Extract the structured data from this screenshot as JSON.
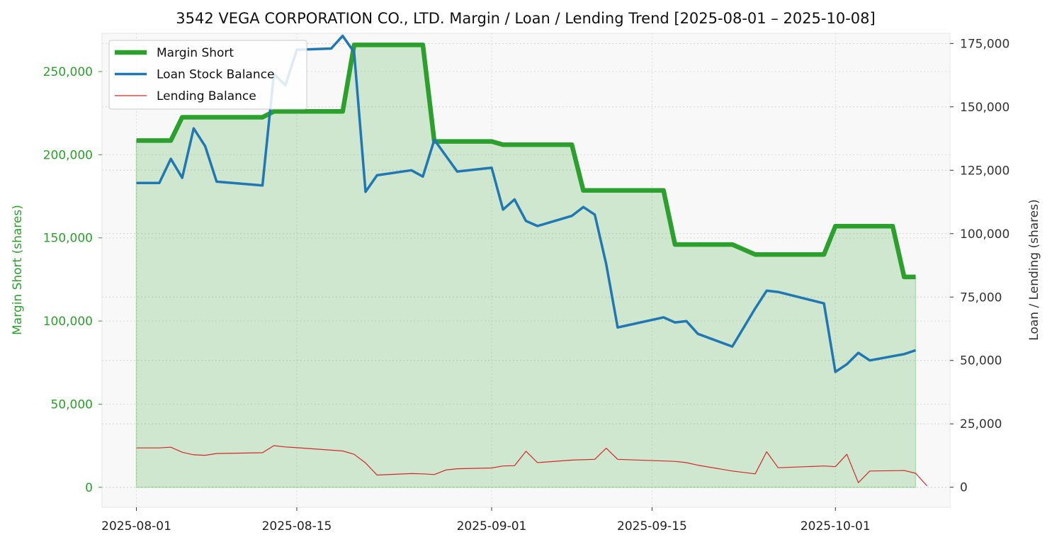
{
  "chart_data": {
    "type": "line",
    "title": "3542 VEGA CORPORATION CO., LTD. Margin / Loan / Lending Trend [2025-08-01 – 2025-10-08]",
    "xlabel": "",
    "ylabel_left": "Margin Short (shares)",
    "ylabel_right": "Loan / Lending (shares)",
    "xlim": [
      "2025-07-29",
      "2025-10-11"
    ],
    "ylim_left": [
      -12000,
      273000
    ],
    "ylim_right": [
      -7900,
      179000
    ],
    "x_ticks": [
      "2025-08-01",
      "2025-08-15",
      "2025-09-01",
      "2025-09-15",
      "2025-10-01"
    ],
    "y_ticks_left": [
      0,
      50000,
      100000,
      150000,
      200000,
      250000
    ],
    "y_ticks_left_labels": [
      "0",
      "50,000",
      "100,000",
      "150,000",
      "200,000",
      "250,000"
    ],
    "y_ticks_right": [
      0,
      25000,
      50000,
      75000,
      100000,
      125000,
      150000,
      175000
    ],
    "y_ticks_right_labels": [
      "0",
      "25,000",
      "50,000",
      "75,000",
      "100,000",
      "125,000",
      "150,000",
      "175,000"
    ],
    "grid": true,
    "legend_position": "top-left",
    "colors": {
      "margin_short": "#2ca02c",
      "loan": "#1f77b4",
      "lending": "#d62728",
      "left_axis": "#2ca02c",
      "right_axis": "#333333",
      "plot_bg": "#f8f8f8"
    },
    "series": [
      {
        "name": "Margin Short",
        "axis": "left",
        "fill": true,
        "points": [
          [
            "2025-08-01",
            208500
          ],
          [
            "2025-08-04",
            208500
          ],
          [
            "2025-08-05",
            222500
          ],
          [
            "2025-08-12",
            222500
          ],
          [
            "2025-08-13",
            226000
          ],
          [
            "2025-08-19",
            226000
          ],
          [
            "2025-08-20",
            266000
          ],
          [
            "2025-08-26",
            266000
          ],
          [
            "2025-08-27",
            208000
          ],
          [
            "2025-09-01",
            208000
          ],
          [
            "2025-09-02",
            206000
          ],
          [
            "2025-09-08",
            206000
          ],
          [
            "2025-09-09",
            178500
          ],
          [
            "2025-09-16",
            178500
          ],
          [
            "2025-09-17",
            146000
          ],
          [
            "2025-09-22",
            146000
          ],
          [
            "2025-09-24",
            140000
          ],
          [
            "2025-09-30",
            140000
          ],
          [
            "2025-10-01",
            157000
          ],
          [
            "2025-10-06",
            157000
          ],
          [
            "2025-10-07",
            126500
          ],
          [
            "2025-10-08",
            126500
          ]
        ]
      },
      {
        "name": "Loan Stock Balance",
        "axis": "right",
        "points": [
          [
            "2025-08-01",
            120000
          ],
          [
            "2025-08-03",
            120000
          ],
          [
            "2025-08-04",
            129500
          ],
          [
            "2025-08-05",
            122000
          ],
          [
            "2025-08-06",
            141500
          ],
          [
            "2025-08-07",
            134500
          ],
          [
            "2025-08-08",
            120500
          ],
          [
            "2025-08-12",
            119000
          ],
          [
            "2025-08-13",
            163000
          ],
          [
            "2025-08-14",
            158500
          ],
          [
            "2025-08-15",
            172500
          ],
          [
            "2025-08-18",
            173000
          ],
          [
            "2025-08-19",
            178000
          ],
          [
            "2025-08-20",
            171500
          ],
          [
            "2025-08-21",
            116500
          ],
          [
            "2025-08-22",
            123000
          ],
          [
            "2025-08-25",
            125000
          ],
          [
            "2025-08-26",
            122500
          ],
          [
            "2025-08-27",
            137000
          ],
          [
            "2025-08-29",
            124500
          ],
          [
            "2025-09-01",
            126000
          ],
          [
            "2025-09-02",
            109500
          ],
          [
            "2025-09-03",
            113500
          ],
          [
            "2025-09-04",
            105000
          ],
          [
            "2025-09-05",
            103000
          ],
          [
            "2025-09-08",
            107000
          ],
          [
            "2025-09-09",
            110500
          ],
          [
            "2025-09-10",
            107500
          ],
          [
            "2025-09-11",
            88000
          ],
          [
            "2025-09-12",
            63000
          ],
          [
            "2025-09-16",
            67000
          ],
          [
            "2025-09-17",
            65000
          ],
          [
            "2025-09-18",
            65500
          ],
          [
            "2025-09-19",
            60500
          ],
          [
            "2025-09-22",
            55500
          ],
          [
            "2025-09-24",
            70500
          ],
          [
            "2025-09-25",
            77500
          ],
          [
            "2025-09-26",
            77000
          ],
          [
            "2025-09-30",
            72500
          ],
          [
            "2025-10-01",
            45500
          ],
          [
            "2025-10-02",
            48500
          ],
          [
            "2025-10-03",
            53000
          ],
          [
            "2025-10-04",
            50000
          ],
          [
            "2025-10-07",
            52500
          ],
          [
            "2025-10-08",
            54000
          ]
        ]
      },
      {
        "name": "Lending Balance",
        "axis": "right",
        "points": [
          [
            "2025-08-01",
            15500
          ],
          [
            "2025-08-03",
            15500
          ],
          [
            "2025-08-04",
            15800
          ],
          [
            "2025-08-05",
            13800
          ],
          [
            "2025-08-06",
            12800
          ],
          [
            "2025-08-07",
            12600
          ],
          [
            "2025-08-08",
            13300
          ],
          [
            "2025-08-12",
            13600
          ],
          [
            "2025-08-13",
            16400
          ],
          [
            "2025-08-14",
            15900
          ],
          [
            "2025-08-15",
            15600
          ],
          [
            "2025-08-19",
            14300
          ],
          [
            "2025-08-20",
            13000
          ],
          [
            "2025-08-21",
            9600
          ],
          [
            "2025-08-22",
            4800
          ],
          [
            "2025-08-25",
            5400
          ],
          [
            "2025-08-26",
            5300
          ],
          [
            "2025-08-27",
            5000
          ],
          [
            "2025-08-28",
            6800
          ],
          [
            "2025-08-29",
            7300
          ],
          [
            "2025-09-01",
            7600
          ],
          [
            "2025-09-02",
            8400
          ],
          [
            "2025-09-03",
            8500
          ],
          [
            "2025-09-04",
            14200
          ],
          [
            "2025-09-05",
            9700
          ],
          [
            "2025-09-08",
            10700
          ],
          [
            "2025-09-10",
            11000
          ],
          [
            "2025-09-11",
            15400
          ],
          [
            "2025-09-12",
            11000
          ],
          [
            "2025-09-17",
            10200
          ],
          [
            "2025-09-18",
            9700
          ],
          [
            "2025-09-19",
            8700
          ],
          [
            "2025-09-22",
            6400
          ],
          [
            "2025-09-24",
            5300
          ],
          [
            "2025-09-25",
            14000
          ],
          [
            "2025-09-26",
            7700
          ],
          [
            "2025-09-30",
            8400
          ],
          [
            "2025-10-01",
            8100
          ],
          [
            "2025-10-02",
            13000
          ],
          [
            "2025-10-03",
            1800
          ],
          [
            "2025-10-04",
            6400
          ],
          [
            "2025-10-07",
            6600
          ],
          [
            "2025-10-08",
            5500
          ],
          [
            "2025-10-09",
            500
          ]
        ]
      }
    ]
  }
}
